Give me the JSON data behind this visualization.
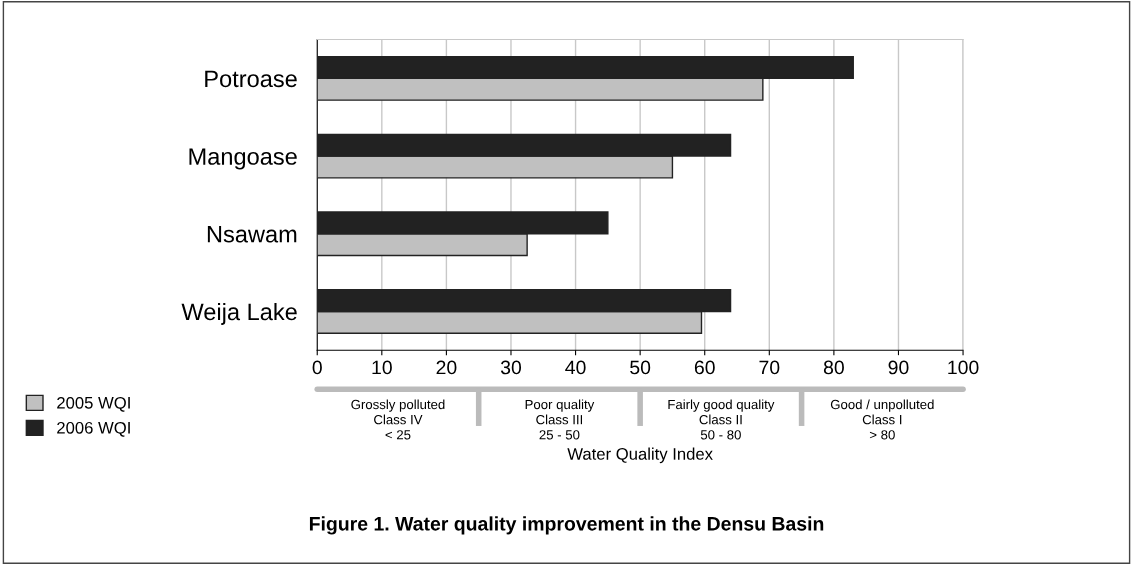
{
  "chart_data": {
    "type": "bar",
    "orientation": "horizontal",
    "title": "Figure 1. Water quality improvement in the Densu Basin",
    "xlabel": "Water Quality Index",
    "categories": [
      "Potroase",
      "Mangoase",
      "Nsawam",
      "Weija Lake"
    ],
    "series": [
      {
        "name": "2005 WQI",
        "color": "#c0c0c0",
        "values": [
          69,
          55,
          32.5,
          59.5
        ]
      },
      {
        "name": "2006 WQI",
        "color": "#222222",
        "values": [
          83,
          64,
          45,
          64
        ]
      }
    ],
    "xlim": [
      0,
      100
    ],
    "xticks": [
      0,
      10,
      20,
      30,
      40,
      50,
      60,
      70,
      80,
      90,
      100
    ],
    "grid": "x",
    "legend": "bottom left",
    "annotations": [
      "Grossly polluted\nClass IV\n< 25",
      "Poor quality\nClass III\n25 - 50",
      "Fairly good quality\nClass II\n50 - 80",
      "Good / unpolluted\nClass I\n> 80"
    ]
  }
}
